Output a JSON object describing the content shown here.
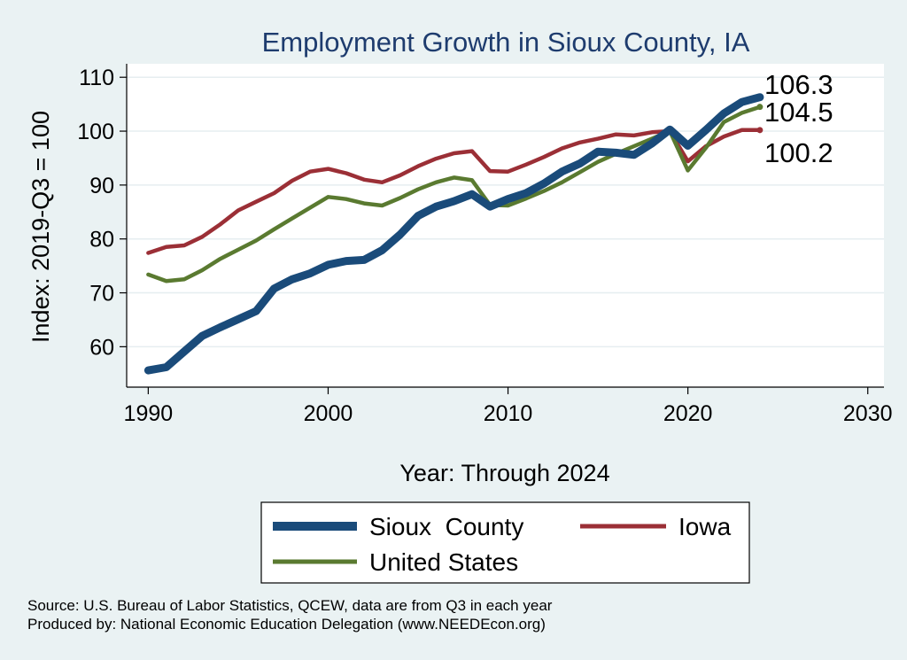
{
  "chart_data": {
    "type": "line",
    "title": "Employment Growth in Sioux County, IA",
    "xlabel": "Year: Through 2024",
    "ylabel": "Index: 2019-Q3 = 100",
    "xlim": [
      1990,
      2030
    ],
    "ylim": [
      52.5,
      112.5
    ],
    "xticks": [
      1990,
      2000,
      2010,
      2020,
      2030
    ],
    "yticks": [
      60,
      70,
      80,
      90,
      100,
      110
    ],
    "grid": true,
    "x": [
      1990,
      1991,
      1992,
      1993,
      1994,
      1995,
      1996,
      1997,
      1998,
      1999,
      2000,
      2001,
      2002,
      2003,
      2004,
      2005,
      2006,
      2007,
      2008,
      2009,
      2010,
      2011,
      2012,
      2013,
      2014,
      2015,
      2016,
      2017,
      2018,
      2019,
      2020,
      2021,
      2022,
      2023,
      2024
    ],
    "series": [
      {
        "name": "Sioux  County",
        "color": "#1a4b7a",
        "width": 9,
        "values": [
          55.6,
          56.2,
          59.1,
          62.0,
          63.6,
          65.1,
          66.6,
          70.8,
          72.5,
          73.6,
          75.2,
          75.9,
          76.1,
          77.9,
          80.8,
          84.3,
          86.0,
          87.0,
          88.3,
          86.0,
          87.4,
          88.5,
          90.3,
          92.5,
          94.0,
          96.2,
          96.0,
          95.6,
          97.7,
          100.3,
          97.3,
          100.2,
          103.3,
          105.4,
          106.3
        ],
        "end_label": "106.3"
      },
      {
        "name": "Iowa",
        "color": "#9b2f36",
        "width": 4.5,
        "values": [
          77.4,
          78.5,
          78.8,
          80.4,
          82.7,
          85.3,
          86.9,
          88.5,
          90.8,
          92.5,
          93.0,
          92.2,
          91.0,
          90.5,
          91.8,
          93.5,
          94.9,
          95.9,
          96.3,
          92.6,
          92.5,
          93.8,
          95.2,
          96.8,
          97.9,
          98.6,
          99.4,
          99.2,
          99.8,
          100.0,
          94.4,
          97.2,
          99.0,
          100.2,
          100.2
        ],
        "end_label": "100.2"
      },
      {
        "name": "United States",
        "color": "#5a7a30",
        "width": 4.5,
        "values": [
          73.4,
          72.2,
          72.5,
          74.2,
          76.3,
          78.0,
          79.7,
          81.8,
          83.8,
          85.8,
          87.8,
          87.4,
          86.6,
          86.2,
          87.6,
          89.2,
          90.5,
          91.4,
          90.9,
          86.3,
          86.2,
          87.5,
          88.9,
          90.5,
          92.4,
          94.3,
          95.8,
          97.2,
          98.6,
          100.0,
          92.7,
          96.9,
          101.7,
          103.4,
          104.5
        ],
        "end_label": "104.5"
      }
    ],
    "legend": [
      "Sioux  County",
      "Iowa",
      "United States"
    ],
    "legend_position": "bottom"
  },
  "source_lines": [
    "Source: U.S. Bureau of Labor Statistics, QCEW, data are from Q3 in each year",
    "Produced by: National Economic Education Delegation (www.NEEDEcon.org)"
  ],
  "colors": {
    "background": "#eaf2f3",
    "plot_area": "#ffffff",
    "title": "#1e3c6e",
    "grid": "#e6eef0"
  }
}
